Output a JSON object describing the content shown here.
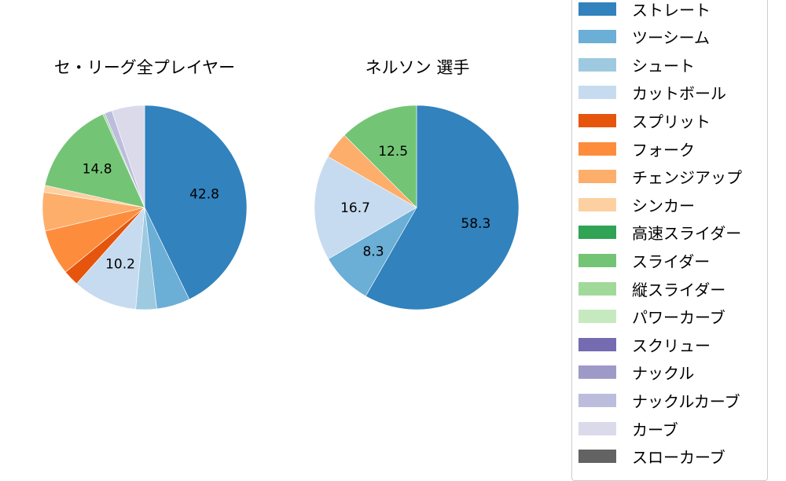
{
  "chart_data": [
    {
      "type": "pie",
      "title": "セ・リーグ全プレイヤー",
      "categories": [
        "ストレート",
        "ツーシーム",
        "シュート",
        "カットボール",
        "スプリット",
        "フォーク",
        "チェンジアップ",
        "シンカー",
        "スライダー",
        "縦スライダー",
        "ナックルカーブ",
        "カーブ"
      ],
      "values": [
        42.8,
        5.3,
        3.3,
        10.2,
        2.5,
        7.2,
        6.1,
        1.1,
        14.8,
        0.3,
        1.2,
        5.2
      ],
      "colors": [
        "#3182bd",
        "#6baed6",
        "#9ecae1",
        "#c6dbef",
        "#e6550d",
        "#fd8d3c",
        "#fdae6b",
        "#fdd0a2",
        "#74c476",
        "#a1d99b",
        "#bcbddc",
        "#dadaeb"
      ],
      "shown_labels": [
        "42.8",
        "",
        "",
        "10.2",
        "",
        "",
        "",
        "",
        "14.8",
        "",
        "",
        ""
      ],
      "startangle": 90,
      "direction": "clockwise"
    },
    {
      "type": "pie",
      "title": "ネルソン  選手",
      "categories": [
        "ストレート",
        "ツーシーム",
        "カットボール",
        "チェンジアップ",
        "スライダー"
      ],
      "values": [
        58.3,
        8.3,
        16.7,
        4.2,
        12.5
      ],
      "colors": [
        "#3182bd",
        "#6baed6",
        "#c6dbef",
        "#fdae6b",
        "#74c476"
      ],
      "shown_labels": [
        "58.3",
        "8.3",
        "16.7",
        "",
        "12.5"
      ],
      "startangle": 90,
      "direction": "clockwise"
    }
  ],
  "titles": {
    "left": "セ・リーグ全プレイヤー",
    "right": "ネルソン  選手"
  },
  "legend": [
    {
      "label": "ストレート",
      "color": "#3182bd"
    },
    {
      "label": "ツーシーム",
      "color": "#6baed6"
    },
    {
      "label": "シュート",
      "color": "#9ecae1"
    },
    {
      "label": "カットボール",
      "color": "#c6dbef"
    },
    {
      "label": "スプリット",
      "color": "#e6550d"
    },
    {
      "label": "フォーク",
      "color": "#fd8d3c"
    },
    {
      "label": "チェンジアップ",
      "color": "#fdae6b"
    },
    {
      "label": "シンカー",
      "color": "#fdd0a2"
    },
    {
      "label": "高速スライダー",
      "color": "#31a354"
    },
    {
      "label": "スライダー",
      "color": "#74c476"
    },
    {
      "label": "縦スライダー",
      "color": "#a1d99b"
    },
    {
      "label": "パワーカーブ",
      "color": "#c7e9c0"
    },
    {
      "label": "スクリュー",
      "color": "#756bb1"
    },
    {
      "label": "ナックル",
      "color": "#9e9ac8"
    },
    {
      "label": "ナックルカーブ",
      "color": "#bcbddc"
    },
    {
      "label": "カーブ",
      "color": "#dadaeb"
    },
    {
      "label": "スローカーブ",
      "color": "#636363"
    }
  ]
}
